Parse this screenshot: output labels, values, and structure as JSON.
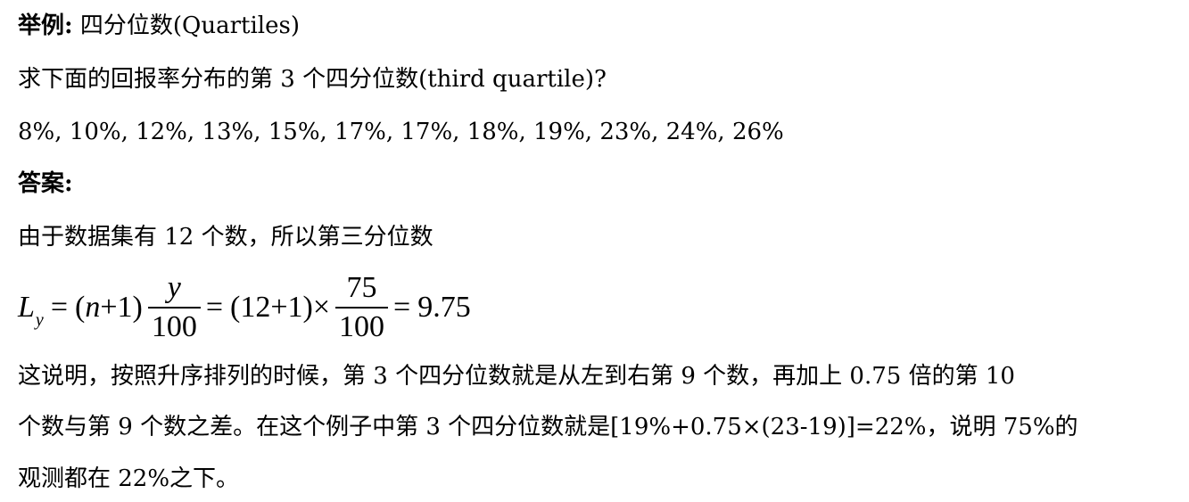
{
  "example": {
    "label": "举例:",
    "title": "四分位数(Quartiles)"
  },
  "question": "求下面的回报率分布的第 3 个四分位数(third quartile)?",
  "data_values": "8%, 10%, 12%, 13%, 15%, 17%, 17%, 18%, 19%, 23%, 24%, 26%",
  "answer": {
    "label": "答案:",
    "intro": "由于数据集有 12 个数，所以第三分位数",
    "formula": {
      "L": "L",
      "sub": "y",
      "eq1": "=",
      "n_expr_open": "(",
      "n": "n",
      "n_expr_rest": "+1)",
      "frac1_num": "y",
      "frac1_den": "100",
      "eq2": "=",
      "mid": "(12+1)×",
      "frac2_num": "75",
      "frac2_den": "100",
      "eq3": "=",
      "result": "9.75"
    },
    "explanation": [
      "这说明，按照升序排列的时候，第 3 个四分位数就是从左到右第 9 个数，再加上 0.75 倍的第 10",
      "个数与第 9 个数之差。在这个例子中第 3 个四分位数就是[19%+0.75×(23-19)]=22%，说明 75%的",
      "观测都在 22%之下。"
    ]
  }
}
